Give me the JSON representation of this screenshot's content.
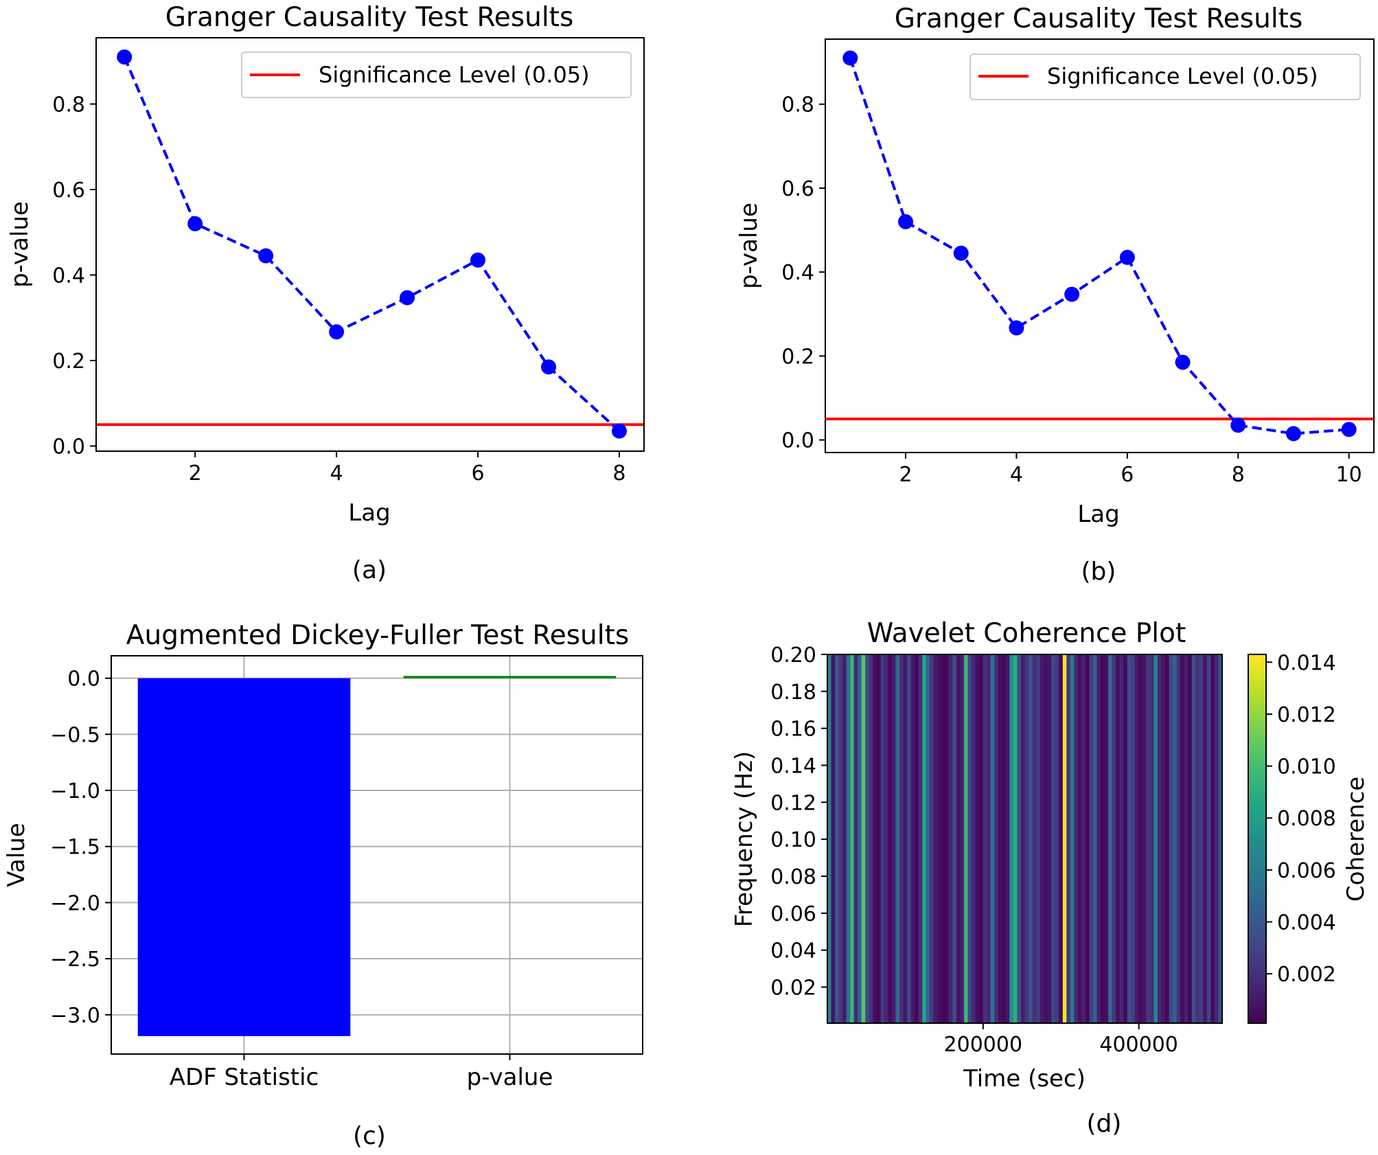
{
  "chart_data": [
    {
      "id": "a",
      "type": "line",
      "panel_label": "(a)",
      "title": "Granger Causality Test Results",
      "xlabel": "Lag",
      "ylabel": "p-value",
      "x": [
        1,
        2,
        3,
        4,
        5,
        6,
        7,
        8
      ],
      "values": [
        0.91,
        0.52,
        0.445,
        0.267,
        0.347,
        0.435,
        0.185,
        0.035
      ],
      "xlim": [
        0.6,
        8.35
      ],
      "ylim": [
        -0.012,
        0.955
      ],
      "xticks": [
        "2",
        "4",
        "6",
        "8"
      ],
      "yticks": [
        "0.0",
        "0.2",
        "0.4",
        "0.6",
        "0.8"
      ],
      "series_style": "dashed line with circle markers",
      "line_color": "#0000ff",
      "threshold": 0.05,
      "threshold_color": "#ff0000",
      "legend": "Significance Level (0.05)",
      "legend_position": "top-right"
    },
    {
      "id": "b",
      "type": "line",
      "panel_label": "(b)",
      "title": "Granger Causality Test Results",
      "xlabel": "Lag",
      "ylabel": "p-value",
      "x": [
        1,
        2,
        3,
        4,
        5,
        6,
        7,
        8,
        9,
        10
      ],
      "values": [
        0.91,
        0.52,
        0.445,
        0.267,
        0.347,
        0.435,
        0.185,
        0.035,
        0.015,
        0.025
      ],
      "xlim": [
        0.55,
        10.45
      ],
      "ylim": [
        -0.03,
        0.955
      ],
      "xticks": [
        "2",
        "4",
        "6",
        "8",
        "10"
      ],
      "yticks": [
        "0.0",
        "0.2",
        "0.4",
        "0.6",
        "0.8"
      ],
      "series_style": "dashed line with circle markers",
      "line_color": "#0000ff",
      "threshold": 0.05,
      "threshold_color": "#ff0000",
      "legend": "Significance Level (0.05)",
      "legend_position": "top-right"
    },
    {
      "id": "c",
      "type": "bar",
      "panel_label": "(c)",
      "title": "Augmented Dickey-Fuller Test Results",
      "xlabel": "",
      "ylabel": "Value",
      "categories": [
        "ADF Statistic",
        "p-value"
      ],
      "values": [
        -3.19,
        0.02
      ],
      "colors": [
        "#0000ff",
        "#008000"
      ],
      "ylim": [
        -3.35,
        0.2
      ],
      "yticks": [
        "0.0",
        "−0.5",
        "−1.0",
        "−1.5",
        "−2.0",
        "−2.5",
        "−3.0"
      ],
      "grid": true
    },
    {
      "id": "d",
      "type": "heatmap",
      "panel_label": "(d)",
      "title": "Wavelet Coherence Plot",
      "xlabel": "Time (sec)",
      "ylabel": "Frequency (Hz)",
      "xlim": [
        0,
        507000
      ],
      "ylim": [
        0.0005,
        0.2
      ],
      "xticks": [
        "200000",
        "400000"
      ],
      "yticks": [
        "0.02",
        "0.04",
        "0.06",
        "0.08",
        "0.10",
        "0.12",
        "0.14",
        "0.16",
        "0.18",
        "0.20"
      ],
      "colorbar_label": "Coherence",
      "colorbar_ticks": [
        "0.002",
        "0.004",
        "0.006",
        "0.008",
        "0.010",
        "0.012",
        "0.014"
      ],
      "colorbar_range": [
        0.0001,
        0.0143
      ],
      "colormap": "viridis",
      "column_values": [
        0.0062,
        0.0008,
        0.0038,
        0.0024,
        0.0012,
        0.0052,
        0.0094,
        0.0016,
        0.0044,
        0.0105,
        0.0033,
        0.0021,
        0.0006,
        0.0003,
        0.0025,
        0.0015,
        0.0005,
        0.0012,
        0.0049,
        0.0021,
        0.0009,
        0.0031,
        0.0011,
        0.0004,
        0.0018,
        0.0083,
        0.0045,
        0.0024,
        0.0011,
        0.0006,
        0.0003,
        0.0005,
        0.0016,
        0.0034,
        0.0008,
        0.0014,
        0.0097,
        0.0029,
        0.0017,
        0.0007,
        0.0004,
        0.0021,
        0.0015,
        0.0055,
        0.0019,
        0.0006,
        0.0003,
        0.001,
        0.0071,
        0.0089,
        0.0036,
        0.0012,
        0.0023,
        0.0039,
        0.002,
        0.0026,
        0.0011,
        0.0007,
        0.0009,
        0.0032,
        0.0026,
        0.0004,
        0.014,
        0.0024,
        0.0058,
        0.0017,
        0.0007,
        0.0014,
        0.0003,
        0.0028,
        0.0045,
        0.0012,
        0.0004,
        0.0006,
        0.0048,
        0.0023,
        0.0007,
        0.0015,
        0.0004,
        0.0035,
        0.0027,
        0.0011,
        0.0005,
        0.0008,
        0.0024,
        0.0019,
        0.0064,
        0.0016,
        0.001,
        0.0004,
        0.0032,
        0.0045,
        0.0021,
        0.0006,
        0.0013,
        0.0003,
        0.0035,
        0.0021,
        0.0026,
        0.0009,
        0.0029,
        0.0005,
        0.0016,
        0.0038
      ]
    }
  ]
}
